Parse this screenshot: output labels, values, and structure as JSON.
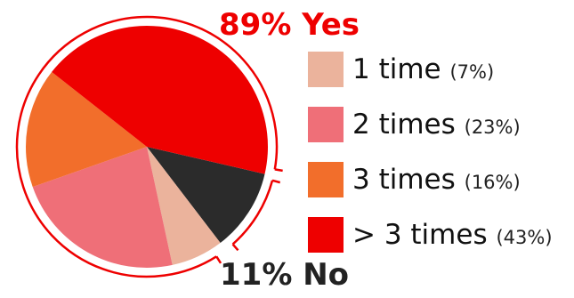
{
  "chart_data": {
    "type": "pie",
    "title": "",
    "slices": [
      {
        "label": "No",
        "value": 11,
        "color": "#2b2b2b"
      },
      {
        "label": "1 time",
        "value": 7,
        "color": "#ebb39c"
      },
      {
        "label": "2 times",
        "value": 23,
        "color": "#ef6f78"
      },
      {
        "label": "3 times",
        "value": 16,
        "color": "#f26e2b"
      },
      {
        "label": "> 3 times",
        "value": 43,
        "color": "#ee0000"
      }
    ],
    "legend": [
      {
        "label": "1 time",
        "pct": "(7%)",
        "color": "#ebb39c"
      },
      {
        "label": "2 times",
        "pct": "(23%)",
        "color": "#ef6f78"
      },
      {
        "label": "3 times",
        "pct": "(16%)",
        "color": "#f26e2b"
      },
      {
        "label": "> 3 times",
        "pct": "(43%)",
        "color": "#ee0000"
      }
    ],
    "annotations": {
      "yes": {
        "text": "89% Yes",
        "color": "#ee0000"
      },
      "no": {
        "text": "11% No",
        "color": "#222222"
      }
    },
    "bracket_color": "#ee0000"
  }
}
